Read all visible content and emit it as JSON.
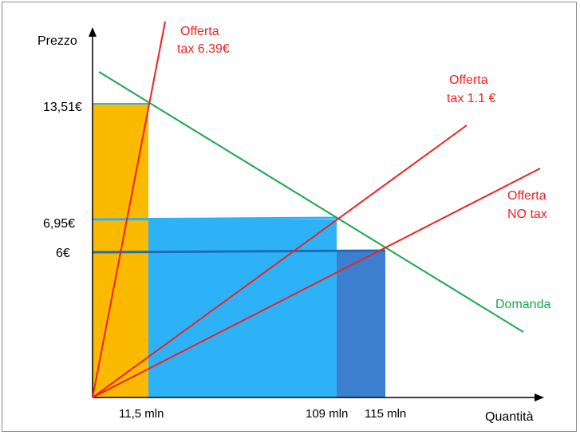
{
  "axes": {
    "y_label": "Prezzo",
    "x_label": "Quantità"
  },
  "price_ticks": [
    {
      "label": "13,51€",
      "value": 13.51
    },
    {
      "label": "6,95€",
      "value": 6.95
    },
    {
      "label": "6€",
      "value": 6
    }
  ],
  "quantity_ticks": [
    {
      "label": "11,5 mln",
      "value": 11.5
    },
    {
      "label": "109 mln",
      "value": 109
    },
    {
      "label": "115 mln",
      "value": 115
    }
  ],
  "curves": {
    "domanda": {
      "label": "Domanda",
      "color": "#1aa84b"
    },
    "offerta_no_tax": {
      "label_line1": "Offerta",
      "label_line2": "NO tax",
      "color": "#ee2222"
    },
    "offerta_tax_1_1": {
      "label_line1": "Offerta",
      "label_line2": "tax 1.1 €",
      "color": "#ee2222"
    },
    "offerta_tax_6_39": {
      "label_line1": "Offerta",
      "label_line2": "tax 6.39€",
      "color": "#ee2222"
    }
  },
  "areas": {
    "orange": "#fbb900",
    "light_blue": "#2eb2f7",
    "dark_blue": "#3d7fcf"
  }
}
